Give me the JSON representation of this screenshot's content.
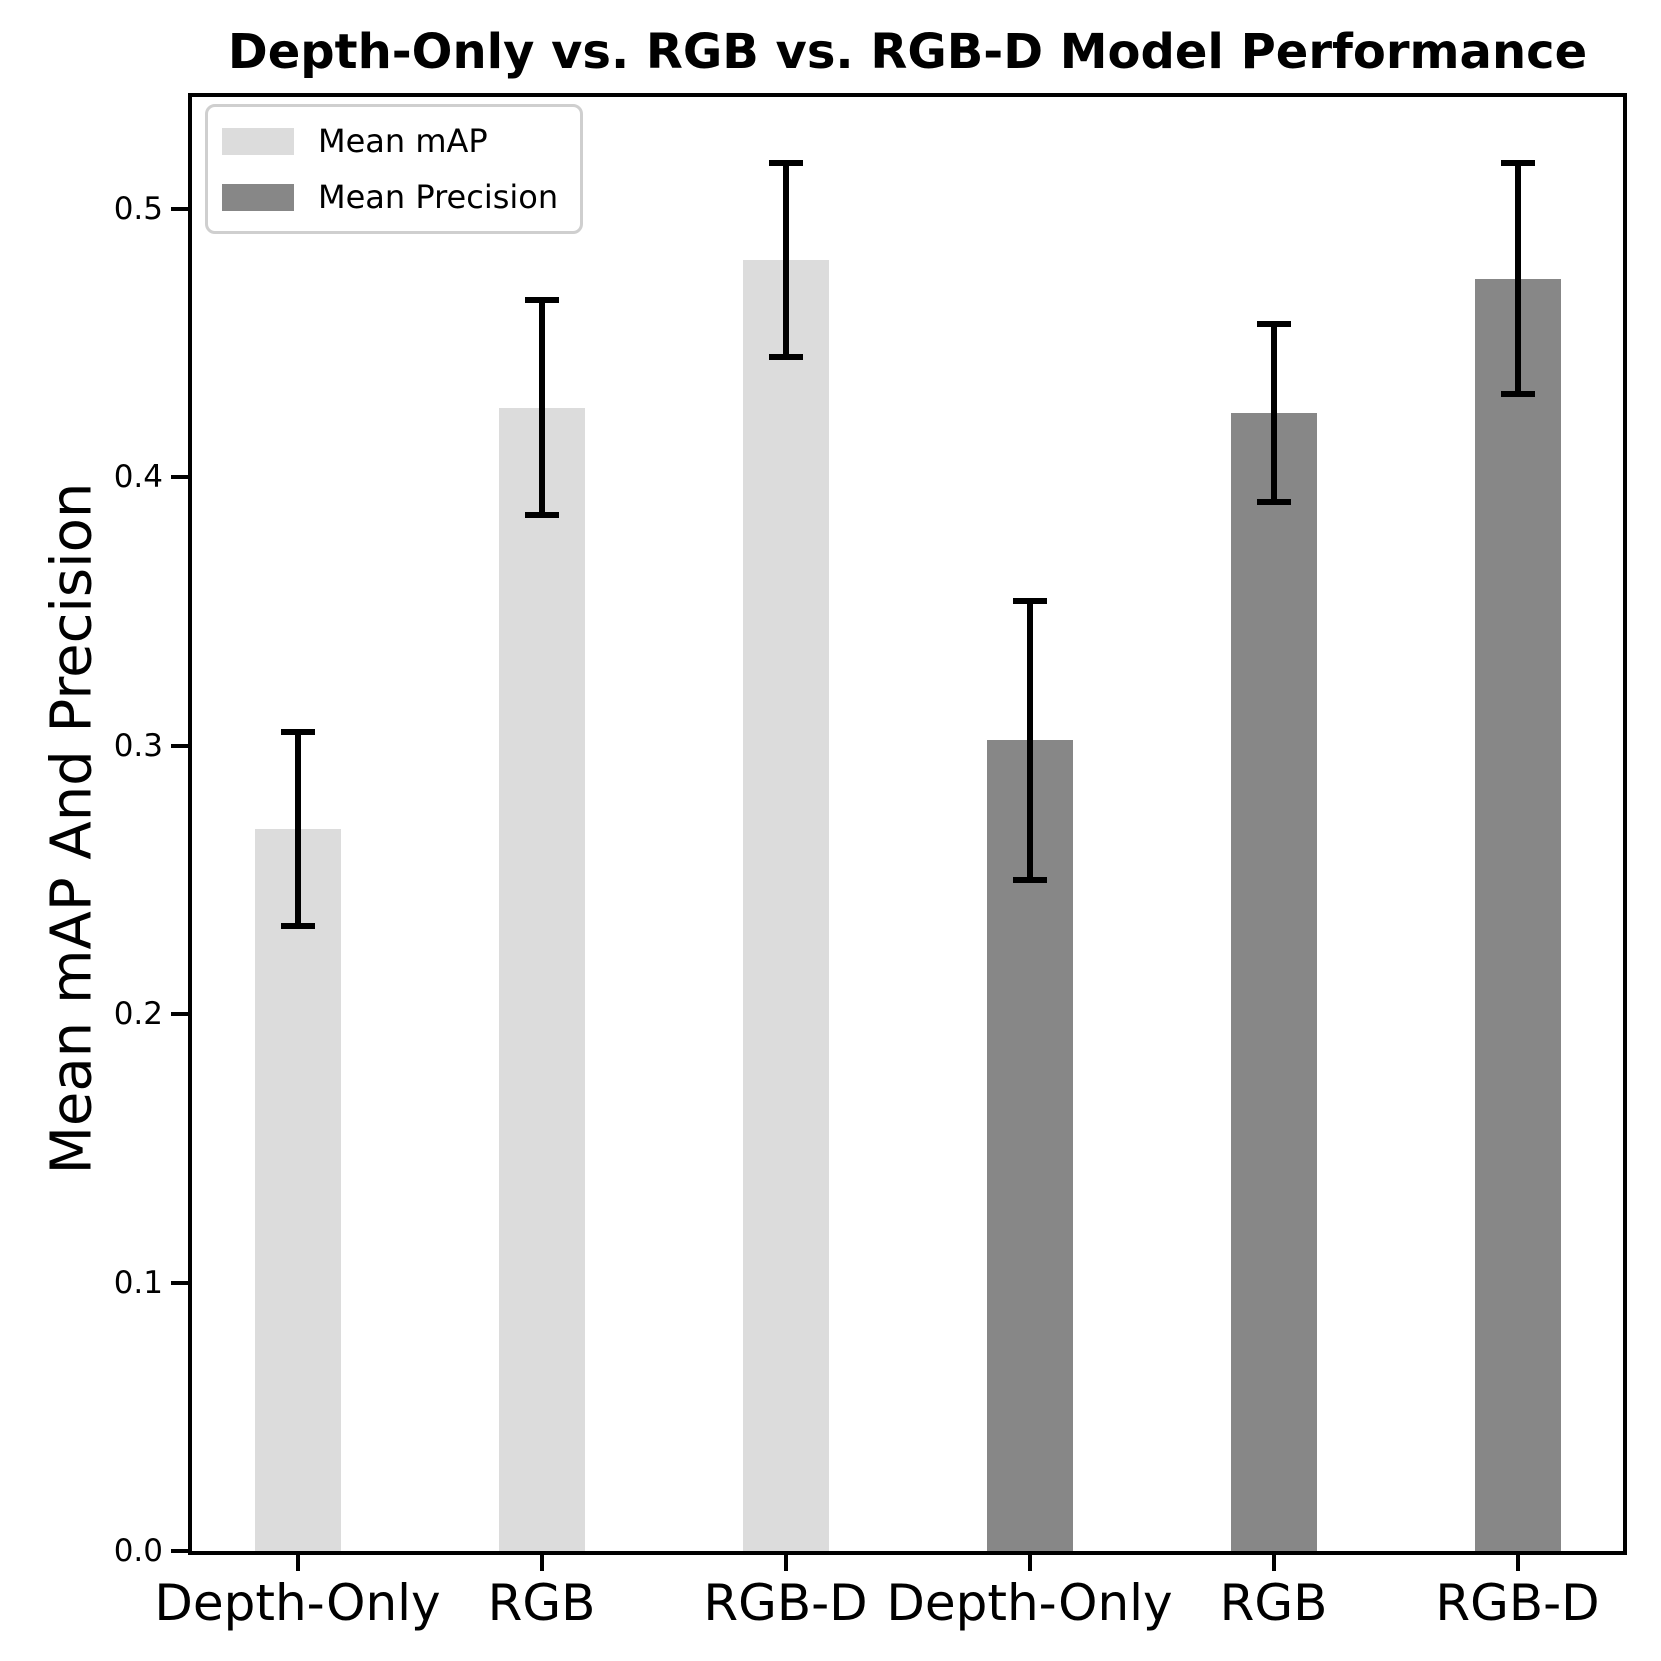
{
  "chart_data": {
    "type": "bar",
    "title": "Depth-Only vs. RGB vs. RGB-D Model Performance",
    "ylabel": "Mean mAP And Precision",
    "xlabel": "",
    "categories": [
      "Depth-Only",
      "RGB",
      "RGB-D",
      "Depth-Only",
      "RGB",
      "RGB-D"
    ],
    "series": [
      {
        "name": "Mean mAP",
        "color": "#dcdcdc",
        "slots": [
          0,
          1,
          2
        ],
        "values": [
          0.269,
          0.426,
          0.481
        ],
        "errors": [
          0.036,
          0.04,
          0.036
        ]
      },
      {
        "name": "Mean Precision",
        "color": "#878787",
        "slots": [
          3,
          4,
          5
        ],
        "values": [
          0.302,
          0.424,
          0.474
        ],
        "errors": [
          0.052,
          0.033,
          0.043
        ]
      }
    ],
    "yticks": [
      0.0,
      0.1,
      0.2,
      0.3,
      0.4,
      0.5
    ],
    "ytick_labels": [
      "0.0",
      "0.1",
      "0.2",
      "0.3",
      "0.4",
      "0.5"
    ],
    "ylim": [
      0,
      0.5417
    ],
    "grid": false,
    "legend_position": "upper left",
    "error_bar_color": "#000000",
    "axis_color": "#000000",
    "background": "#ffffff"
  }
}
